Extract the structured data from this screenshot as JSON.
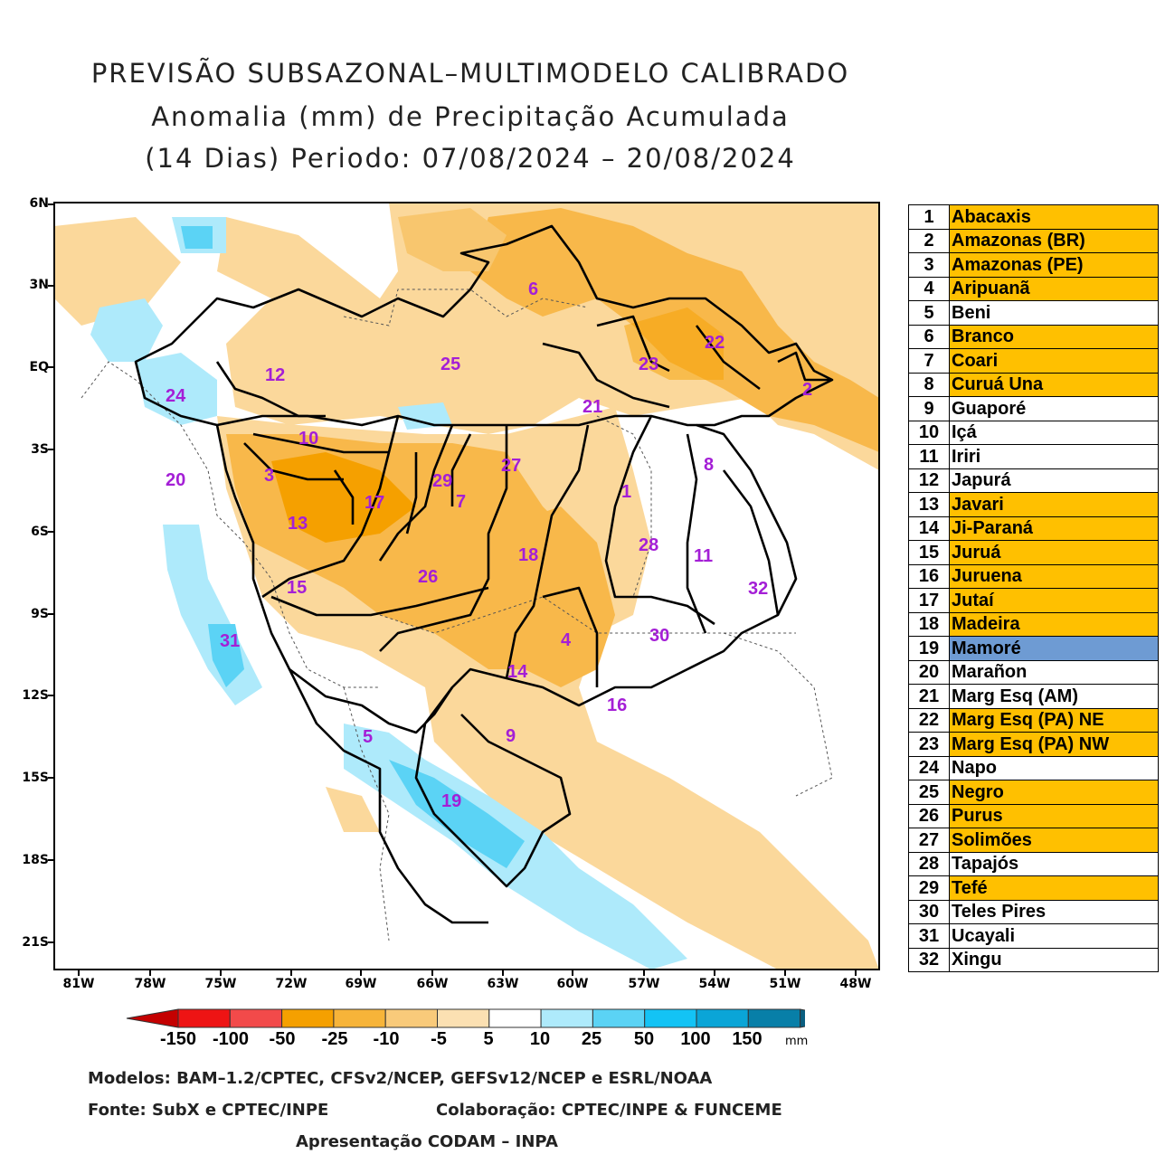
{
  "titles": {
    "line1": "PREVISÃO SUBSAZONAL–MULTIMODELO CALIBRADO",
    "line2": "Anomalia (mm) de Precipitação Acumulada",
    "line3": "(14 Dias) Periodo: 07/08/2024 – 20/08/2024"
  },
  "axes": {
    "lat_labels": [
      "6N",
      "3N",
      "EQ",
      "3S",
      "6S",
      "9S",
      "12S",
      "15S",
      "18S",
      "21S"
    ],
    "lon_labels": [
      "81W",
      "78W",
      "75W",
      "72W",
      "69W",
      "66W",
      "63W",
      "60W",
      "57W",
      "54W",
      "51W",
      "48W"
    ]
  },
  "basin_numbers": [
    "1",
    "2",
    "3",
    "4",
    "5",
    "6",
    "7",
    "8",
    "9",
    "10",
    "11",
    "12",
    "13",
    "14",
    "15",
    "16",
    "17",
    "18",
    "19",
    "20",
    "21",
    "22",
    "23",
    "24",
    "25",
    "26",
    "27",
    "28",
    "29",
    "30",
    "31",
    "32"
  ],
  "legend": [
    {
      "num": "1",
      "name": "Abacaxis",
      "color": "#FFC000"
    },
    {
      "num": "2",
      "name": "Amazonas (BR)",
      "color": "#FFC000"
    },
    {
      "num": "3",
      "name": "Amazonas (PE)",
      "color": "#FFC000"
    },
    {
      "num": "4",
      "name": "Aripuanã",
      "color": "#FFC000"
    },
    {
      "num": "5",
      "name": "Beni",
      "color": "#FFFFFF"
    },
    {
      "num": "6",
      "name": "Branco",
      "color": "#FFC000"
    },
    {
      "num": "7",
      "name": "Coari",
      "color": "#FFC000"
    },
    {
      "num": "8",
      "name": "Curuá Una",
      "color": "#FFC000"
    },
    {
      "num": "9",
      "name": "Guaporé",
      "color": "#FFFFFF"
    },
    {
      "num": "10",
      "name": "Içá",
      "color": "#FFFFFF"
    },
    {
      "num": "11",
      "name": "Iriri",
      "color": "#FFFFFF"
    },
    {
      "num": "12",
      "name": "Japurá",
      "color": "#FFFFFF"
    },
    {
      "num": "13",
      "name": "Javari",
      "color": "#FFC000"
    },
    {
      "num": "14",
      "name": "Ji-Paraná",
      "color": "#FFC000"
    },
    {
      "num": "15",
      "name": "Juruá",
      "color": "#FFC000"
    },
    {
      "num": "16",
      "name": "Juruena",
      "color": "#FFC000"
    },
    {
      "num": "17",
      "name": "Jutaí",
      "color": "#FFC000"
    },
    {
      "num": "18",
      "name": "Madeira",
      "color": "#FFC000"
    },
    {
      "num": "19",
      "name": "Mamoré",
      "color": "#6E9BD3"
    },
    {
      "num": "20",
      "name": "Marañon",
      "color": "#FFFFFF"
    },
    {
      "num": "21",
      "name": "Marg Esq (AM)",
      "color": "#FFFFFF"
    },
    {
      "num": "22",
      "name": "Marg Esq (PA) NE",
      "color": "#FFC000"
    },
    {
      "num": "23",
      "name": "Marg Esq (PA) NW",
      "color": "#FFC000"
    },
    {
      "num": "24",
      "name": "Napo",
      "color": "#FFFFFF"
    },
    {
      "num": "25",
      "name": "Negro",
      "color": "#FFC000"
    },
    {
      "num": "26",
      "name": "Purus",
      "color": "#FFC000"
    },
    {
      "num": "27",
      "name": "Solimões",
      "color": "#FFC000"
    },
    {
      "num": "28",
      "name": "Tapajós",
      "color": "#FFFFFF"
    },
    {
      "num": "29",
      "name": "Tefé",
      "color": "#FFC000"
    },
    {
      "num": "30",
      "name": "Teles Pires",
      "color": "#FFFFFF"
    },
    {
      "num": "31",
      "name": "Ucayali",
      "color": "#FFFFFF"
    },
    {
      "num": "32",
      "name": "Xingu",
      "color": "#FFFFFF"
    }
  ],
  "colorbar": {
    "labels": [
      "-150",
      "-100",
      "-50",
      "-25",
      "-10",
      "-5",
      "5",
      "10",
      "25",
      "50",
      "100",
      "150"
    ],
    "unit": "mm",
    "colors": [
      "#c40000",
      "#ee1414",
      "#f24a4a",
      "#f5a000",
      "#f7b439",
      "#f9ca7a",
      "#fbe0b2",
      "#ffffff",
      "#aeeafb",
      "#5bd3f5",
      "#13c3f5",
      "#0aa5d7",
      "#087fa8",
      "#0a5e80"
    ]
  },
  "footer": {
    "models": "Modelos: BAM–1.2/CPTEC, CFSv2/NCEP, GEFSv12/NCEP e ESRL/NOAA",
    "source": "Fonte: SubX e CPTEC/INPE",
    "collab": "Colaboração: CPTEC/INPE & FUNCEME",
    "presentation": "Apresentação CODAM – INPA"
  }
}
